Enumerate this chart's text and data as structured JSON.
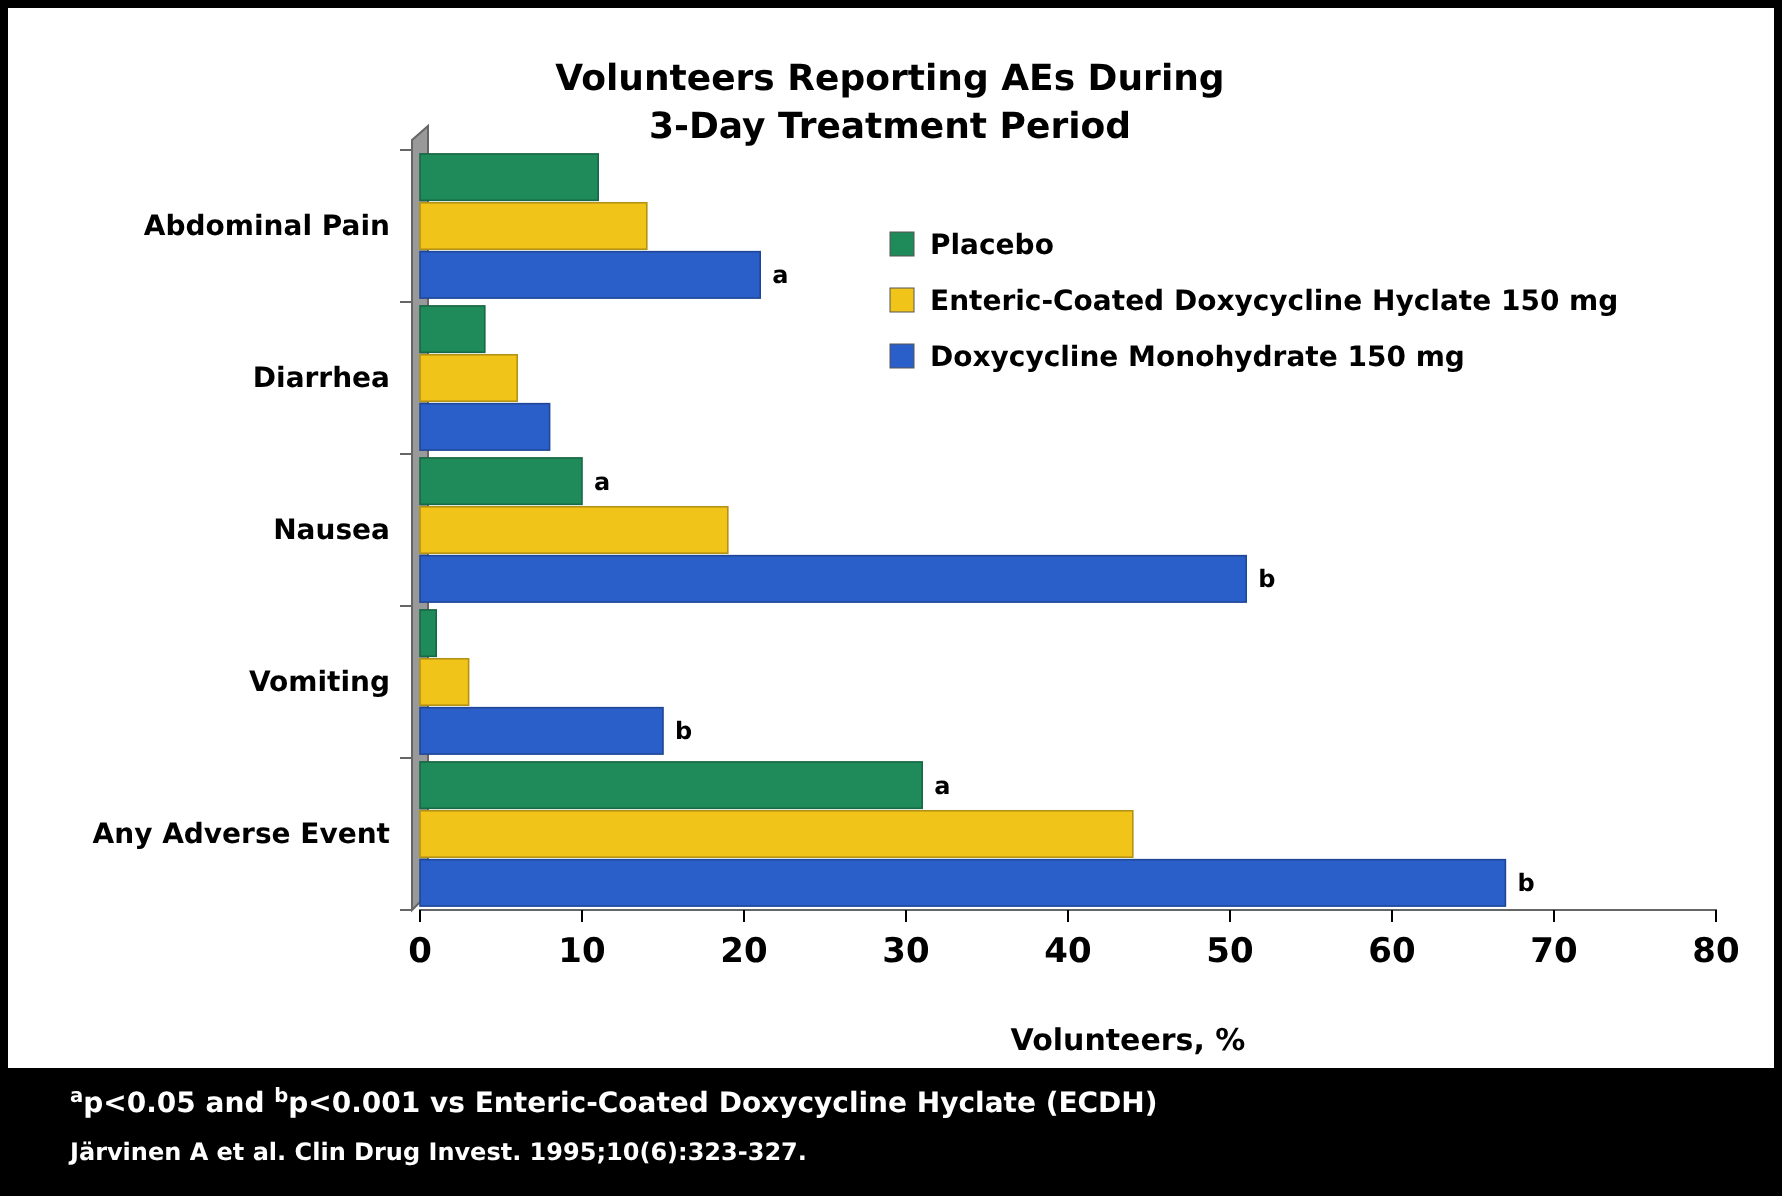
{
  "chart_data": {
    "type": "bar",
    "orientation": "horizontal",
    "title": "Volunteers Reporting AEs During 3-Day Treatment Period",
    "xlabel": "Volunteers, %",
    "categories": [
      "Abdominal Pain",
      "Diarrhea",
      "Nausea",
      "Vomiting",
      "Any Adverse Event"
    ],
    "series": [
      {
        "name": "Placebo",
        "color": "#1f8a5a",
        "values": [
          11,
          4,
          10,
          1,
          31
        ],
        "value_labels": [
          null,
          null,
          "a",
          null,
          "a"
        ]
      },
      {
        "name": "Enteric-Coated Doxycycline Hyclate 150 mg",
        "color": "#f0c419",
        "values": [
          14,
          6,
          19,
          3,
          44
        ],
        "value_labels": [
          null,
          null,
          null,
          null,
          null
        ]
      },
      {
        "name": "Doxycycline Monohydrate 150 mg",
        "color": "#2a5fc9",
        "values": [
          21,
          8,
          51,
          15,
          67
        ],
        "value_labels": [
          "a",
          null,
          "b",
          "b",
          "b"
        ]
      }
    ],
    "xlim": [
      0,
      80
    ],
    "xticks": [
      0,
      10,
      20,
      30,
      40,
      50,
      60,
      70,
      80
    ],
    "legend": "top right",
    "grid": false,
    "annotations": [
      "$^{a}$p<0.05 and $^{b}$p<0.001 vs Enteric-Coated Doxycycline Hyclate (ECDH)",
      "Järvinen A et al. Clin Drug Invest. 1995;10(6):323-327."
    ]
  }
}
